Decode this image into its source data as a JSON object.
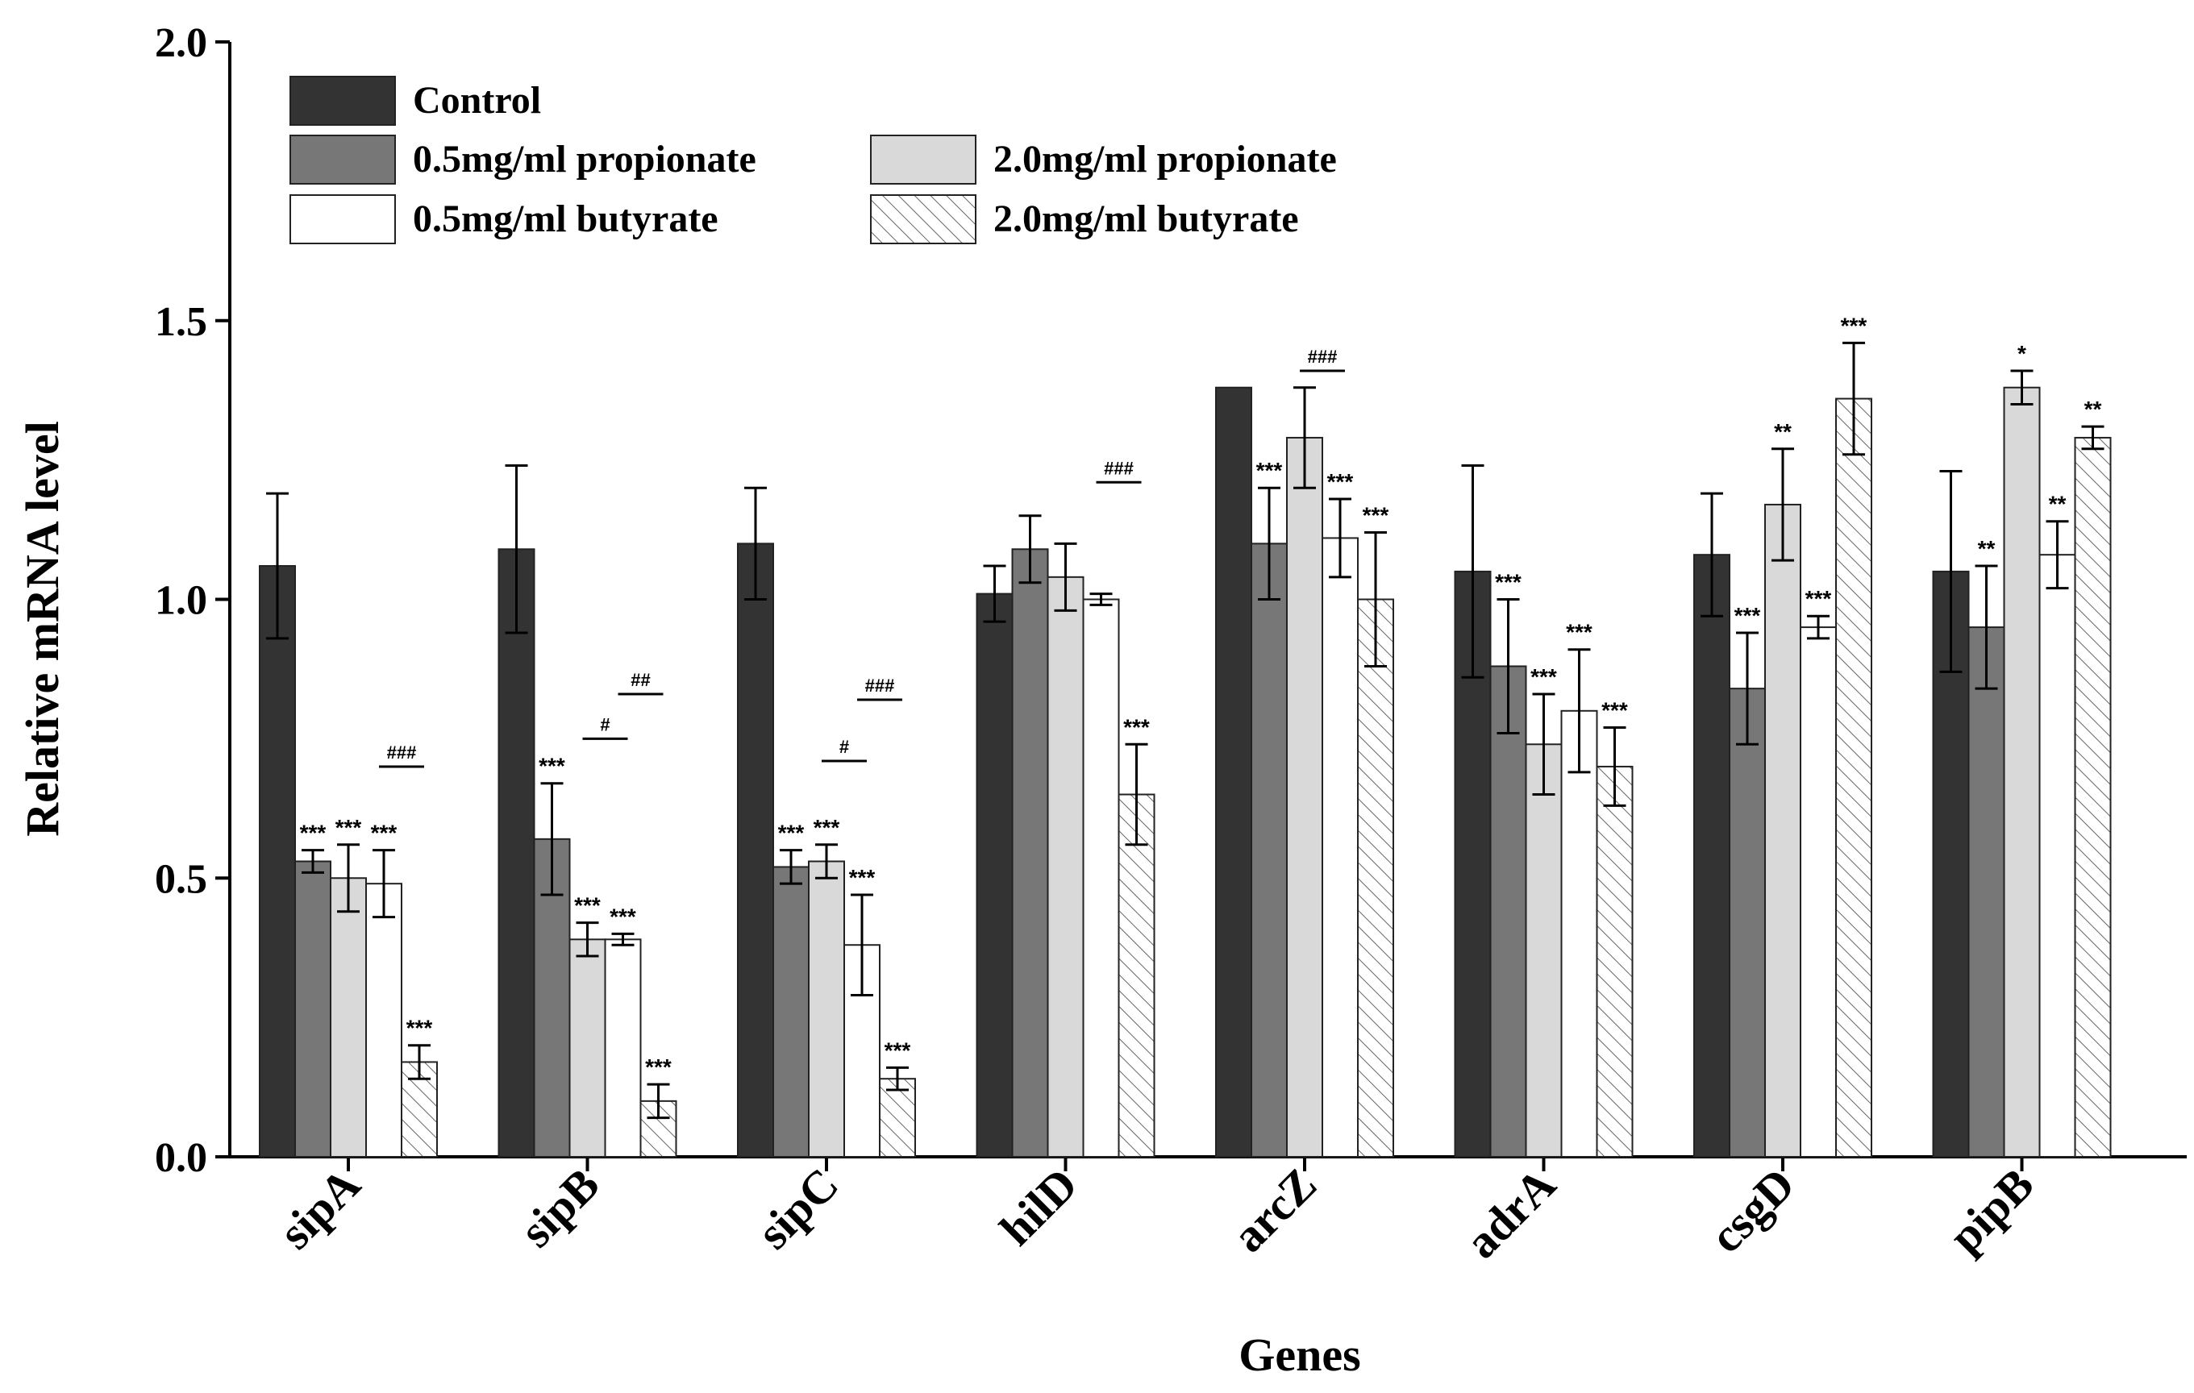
{
  "chart_data": {
    "type": "bar",
    "xlabel": "Genes",
    "ylabel": "Relative mRNA level",
    "ylim": [
      0,
      2.0
    ],
    "yticks": [
      "0.0",
      "0.5",
      "1.0",
      "1.5",
      "2.0"
    ],
    "legend_position": "top-left",
    "categories": [
      "sipA",
      "sipB",
      "sipC",
      "hilD",
      "arcZ",
      "adrA",
      "csgD",
      "pipB"
    ],
    "series": [
      {
        "name": "Control",
        "fill": "#333333",
        "pattern": "solid",
        "values": [
          1.06,
          1.09,
          1.1,
          1.01,
          1.38,
          1.05,
          1.08,
          1.05
        ],
        "errors": [
          0.13,
          0.15,
          0.1,
          0.05,
          0.0,
          0.19,
          0.11,
          0.18
        ],
        "sig": [
          "",
          "",
          "",
          "",
          "",
          "",
          "",
          ""
        ]
      },
      {
        "name": "0.5mg/ml propionate",
        "fill": "#777777",
        "pattern": "solid",
        "values": [
          0.53,
          0.57,
          0.52,
          1.09,
          1.1,
          0.88,
          0.84,
          0.95
        ],
        "errors": [
          0.02,
          0.1,
          0.03,
          0.06,
          0.1,
          0.12,
          0.1,
          0.11
        ],
        "sig": [
          "***",
          "***",
          "***",
          "",
          "***",
          "***",
          "***",
          "**"
        ]
      },
      {
        "name": "2.0mg/ml propionate",
        "fill": "#d9d9d9",
        "pattern": "solid",
        "values": [
          0.5,
          0.39,
          0.53,
          1.04,
          1.29,
          0.74,
          1.17,
          1.38
        ],
        "errors": [
          0.06,
          0.03,
          0.03,
          0.06,
          0.09,
          0.09,
          0.1,
          0.03
        ],
        "sig": [
          "***",
          "***",
          "***",
          "",
          "",
          "***",
          "**",
          "*"
        ]
      },
      {
        "name": "0.5mg/ml butyrate",
        "fill": "#ffffff",
        "pattern": "solid",
        "values": [
          0.49,
          0.39,
          0.38,
          1.0,
          1.11,
          0.8,
          0.95,
          1.08
        ],
        "errors": [
          0.06,
          0.01,
          0.09,
          0.01,
          0.07,
          0.11,
          0.02,
          0.06
        ],
        "sig": [
          "***",
          "***",
          "***",
          "",
          "***",
          "***",
          "***",
          "**"
        ]
      },
      {
        "name": "2.0mg/ml butyrate",
        "fill": "#ffffff",
        "pattern": "hatch",
        "values": [
          0.17,
          0.1,
          0.14,
          0.65,
          1.0,
          0.7,
          1.36,
          1.29
        ],
        "errors": [
          0.03,
          0.03,
          0.02,
          0.09,
          0.12,
          0.07,
          0.1,
          0.02
        ],
        "sig": [
          "***",
          "***",
          "***",
          "***",
          "***",
          "***",
          "***",
          "**"
        ]
      }
    ],
    "brackets": [
      {
        "category": 0,
        "from_series": 3,
        "to_series": 4,
        "level": 0.7,
        "label": "###"
      },
      {
        "category": 1,
        "from_series": 2,
        "to_series": 3,
        "level": 0.75,
        "label": "#"
      },
      {
        "category": 1,
        "from_series": 3,
        "to_series": 4,
        "level": 0.83,
        "label": "##"
      },
      {
        "category": 2,
        "from_series": 2,
        "to_series": 3,
        "level": 0.71,
        "label": "#"
      },
      {
        "category": 2,
        "from_series": 3,
        "to_series": 4,
        "level": 0.82,
        "label": "###"
      },
      {
        "category": 3,
        "from_series": 3,
        "to_series": 4,
        "level": 1.21,
        "label": "###"
      },
      {
        "category": 4,
        "from_series": 2,
        "to_series": 3,
        "level": 1.41,
        "label": "###"
      }
    ]
  }
}
